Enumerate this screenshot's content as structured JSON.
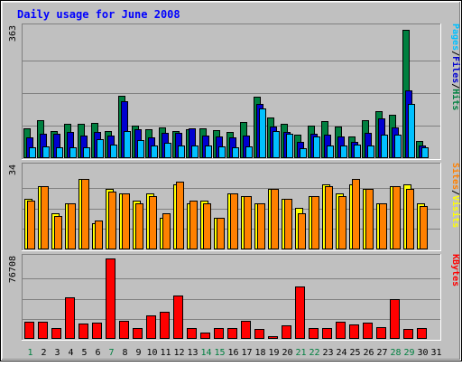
{
  "chart_data": {
    "type": "bar",
    "title": "Daily usage for June 2008",
    "categories": [
      "1",
      "2",
      "3",
      "4",
      "5",
      "6",
      "7",
      "8",
      "9",
      "10",
      "11",
      "12",
      "13",
      "14",
      "15",
      "16",
      "17",
      "18",
      "19",
      "20",
      "21",
      "22",
      "23",
      "24",
      "25",
      "26",
      "27",
      "28",
      "29",
      "30",
      "31"
    ],
    "weekend_days": [
      "1",
      "7",
      "14",
      "15",
      "21",
      "22",
      "28",
      "29"
    ],
    "panels": [
      {
        "id": "hits-files-pages",
        "ymax_label": "363",
        "ylim": [
          0,
          363
        ],
        "axis_labels": [
          "Pages",
          "/",
          "Files",
          "/",
          "Hits"
        ],
        "series": [
          {
            "name": "Hits",
            "color": "#008040",
            "values": [
              84,
              105,
              75,
              95,
              96,
              99,
              75,
              174,
              91,
              80,
              86,
              76,
              80,
              84,
              77,
              72,
              100,
              171,
              113,
              95,
              66,
              92,
              104,
              87,
              60,
              105,
              130,
              120,
              357,
              47,
              0
            ]
          },
          {
            "name": "Files",
            "color": "#0000d0",
            "values": [
              58,
              68,
              67,
              73,
              64,
              72,
              62,
              158,
              80,
              59,
              70,
              71,
              83,
              62,
              61,
              58,
              64,
              152,
              89,
              72,
              45,
              69,
              65,
              60,
              45,
              71,
              112,
              85,
              188,
              36,
              0
            ]
          },
          {
            "name": "Pages",
            "color": "#00c0ff",
            "values": [
              29,
              32,
              31,
              30,
              29,
              53,
              39,
              76,
              51,
              36,
              44,
              36,
              35,
              35,
              34,
              30,
              32,
              138,
              76,
              67,
              28,
              60,
              36,
              35,
              37,
              36,
              65,
              65,
              150,
              31,
              0
            ]
          }
        ]
      },
      {
        "id": "visits-sites",
        "ymax_label": "34",
        "ylim": [
          0,
          34
        ],
        "axis_labels": [
          "Sites",
          "/",
          "Visits"
        ],
        "series": [
          {
            "name": "Visits",
            "color": "#ffff00",
            "values": [
              21,
              26,
              15,
              19,
              29,
              11,
              25,
              23,
              20,
              23,
              13,
              27,
              19,
              20,
              13,
              23,
              22,
              19,
              25,
              21,
              17,
              22,
              27,
              23,
              27,
              25,
              19,
              26,
              27,
              19,
              0
            ]
          },
          {
            "name": "Sites",
            "color": "#ff8000",
            "values": [
              20,
              26,
              14,
              19,
              29,
              12,
              24,
              23,
              19,
              22,
              15,
              28,
              20,
              19,
              13,
              23,
              22,
              19,
              25,
              21,
              15,
              22,
              26,
              22,
              29,
              25,
              19,
              26,
              25,
              18,
              0
            ]
          }
        ]
      },
      {
        "id": "kbytes",
        "ymax_label": "76708",
        "ylim": [
          0,
          76708
        ],
        "axis_labels": [
          "KBytes"
        ],
        "series": [
          {
            "name": "KBytes",
            "color": "#ff0000",
            "values": [
              16100,
              16500,
              10000,
              39500,
              15000,
              15700,
              76708,
              16900,
              10200,
              22600,
              25500,
              41000,
              10500,
              6400,
              10300,
              10000,
              17100,
              9300,
              2700,
              13000,
              50300,
              10700,
              10200,
              16600,
              14100,
              15900,
              10800,
              38200,
              9800,
              10000,
              0
            ]
          }
        ]
      }
    ]
  }
}
